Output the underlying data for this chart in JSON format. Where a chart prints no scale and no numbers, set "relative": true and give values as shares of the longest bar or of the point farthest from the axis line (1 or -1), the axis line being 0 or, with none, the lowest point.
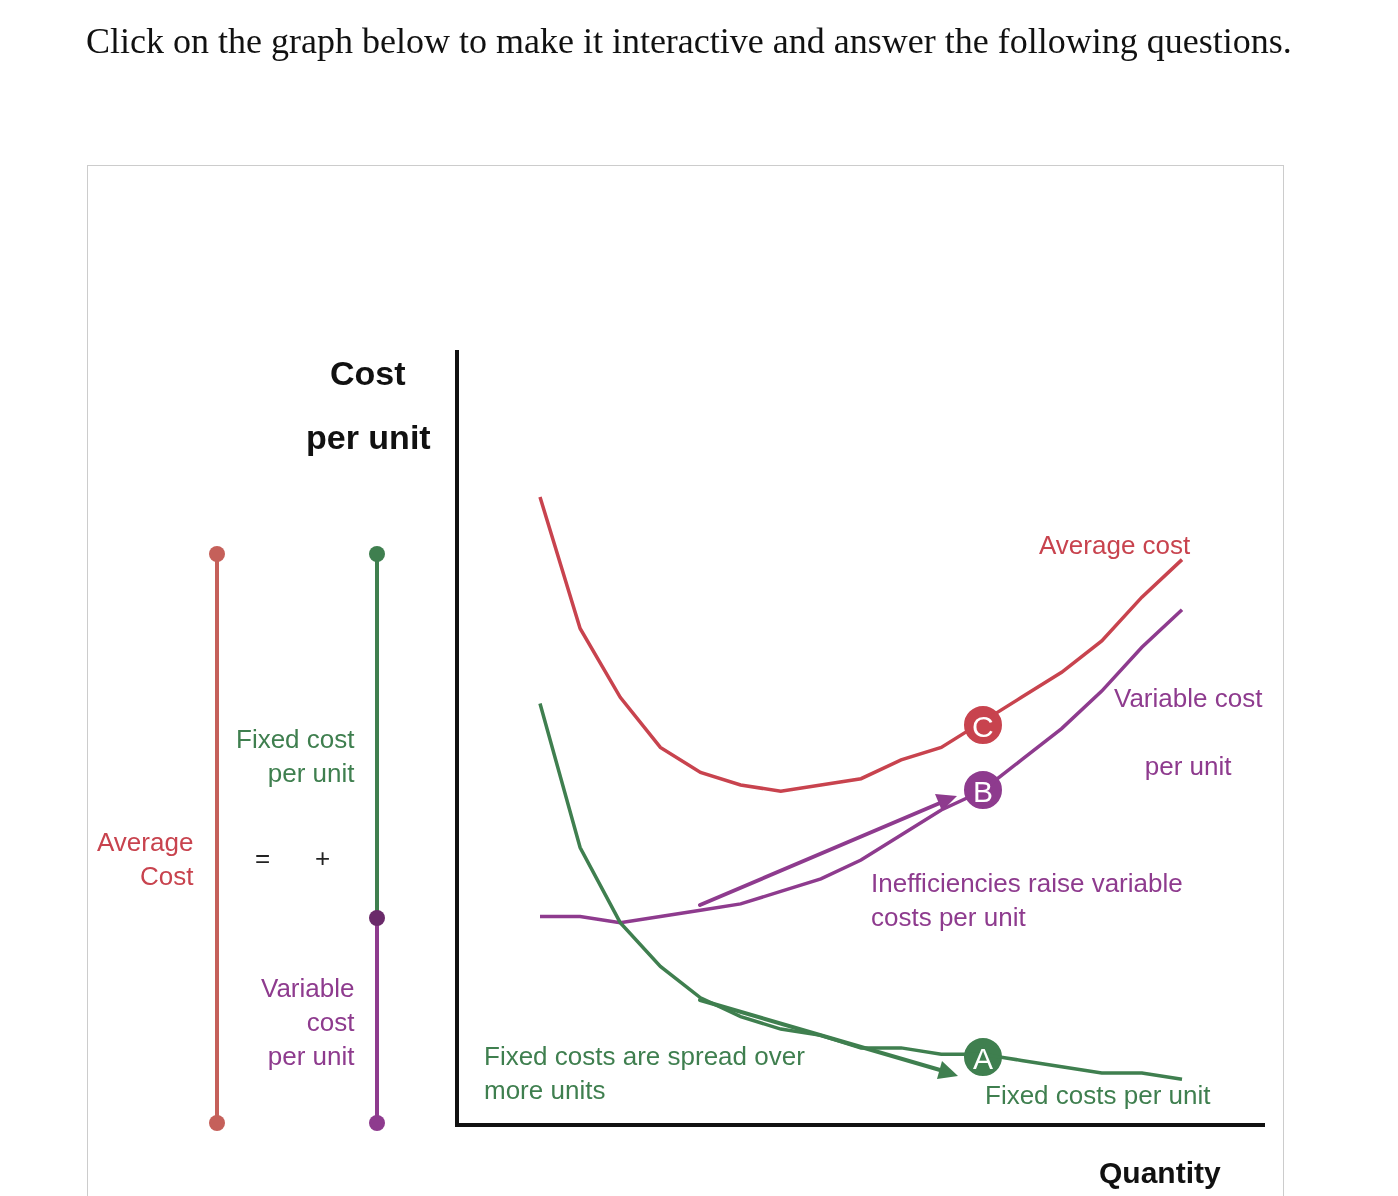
{
  "chart_data": {
    "type": "line",
    "relative": true,
    "title": "Click on the graph below to make it interactive and answer the following questions.",
    "xlabel": "Quantity",
    "ylabel": "Cost\nper unit",
    "categories": [
      null,
      null,
      null,
      null,
      null,
      null,
      null,
      null,
      null,
      null,
      null,
      null,
      null,
      null,
      null,
      null,
      null
    ],
    "series": [
      {
        "name": "Average cost",
        "color": "#c8434e",
        "values": [
          1.0,
          0.79,
          0.68,
          0.6,
          0.56,
          0.54,
          0.53,
          0.54,
          0.55,
          0.58,
          0.6,
          0.64,
          0.68,
          0.72,
          0.77,
          0.84,
          0.9
        ]
      },
      {
        "name": "Variable cost\nper unit",
        "color": "#8e3b8e",
        "values": [
          0.33,
          0.33,
          0.32,
          0.33,
          0.34,
          0.35,
          0.37,
          0.39,
          0.42,
          0.46,
          0.5,
          0.53,
          0.58,
          0.63,
          0.69,
          0.76,
          0.82
        ]
      },
      {
        "name": "Fixed costs per unit",
        "color": "#3f7f4f",
        "values": [
          0.67,
          0.44,
          0.32,
          0.25,
          0.2,
          0.17,
          0.15,
          0.14,
          0.12,
          0.12,
          0.11,
          0.11,
          0.1,
          0.09,
          0.08,
          0.08,
          0.07
        ]
      }
    ],
    "annotations": [
      "Fixed cost\nper unit",
      "Variable\ncost\nper unit",
      "Average\nCost",
      "=",
      "+",
      "Inefficiencies raise variable\ncosts per unit",
      "Fixed costs are spread over\nmore units",
      "C",
      "B",
      "A"
    ],
    "grid": false,
    "marker": "none",
    "line_style": "solid"
  }
}
